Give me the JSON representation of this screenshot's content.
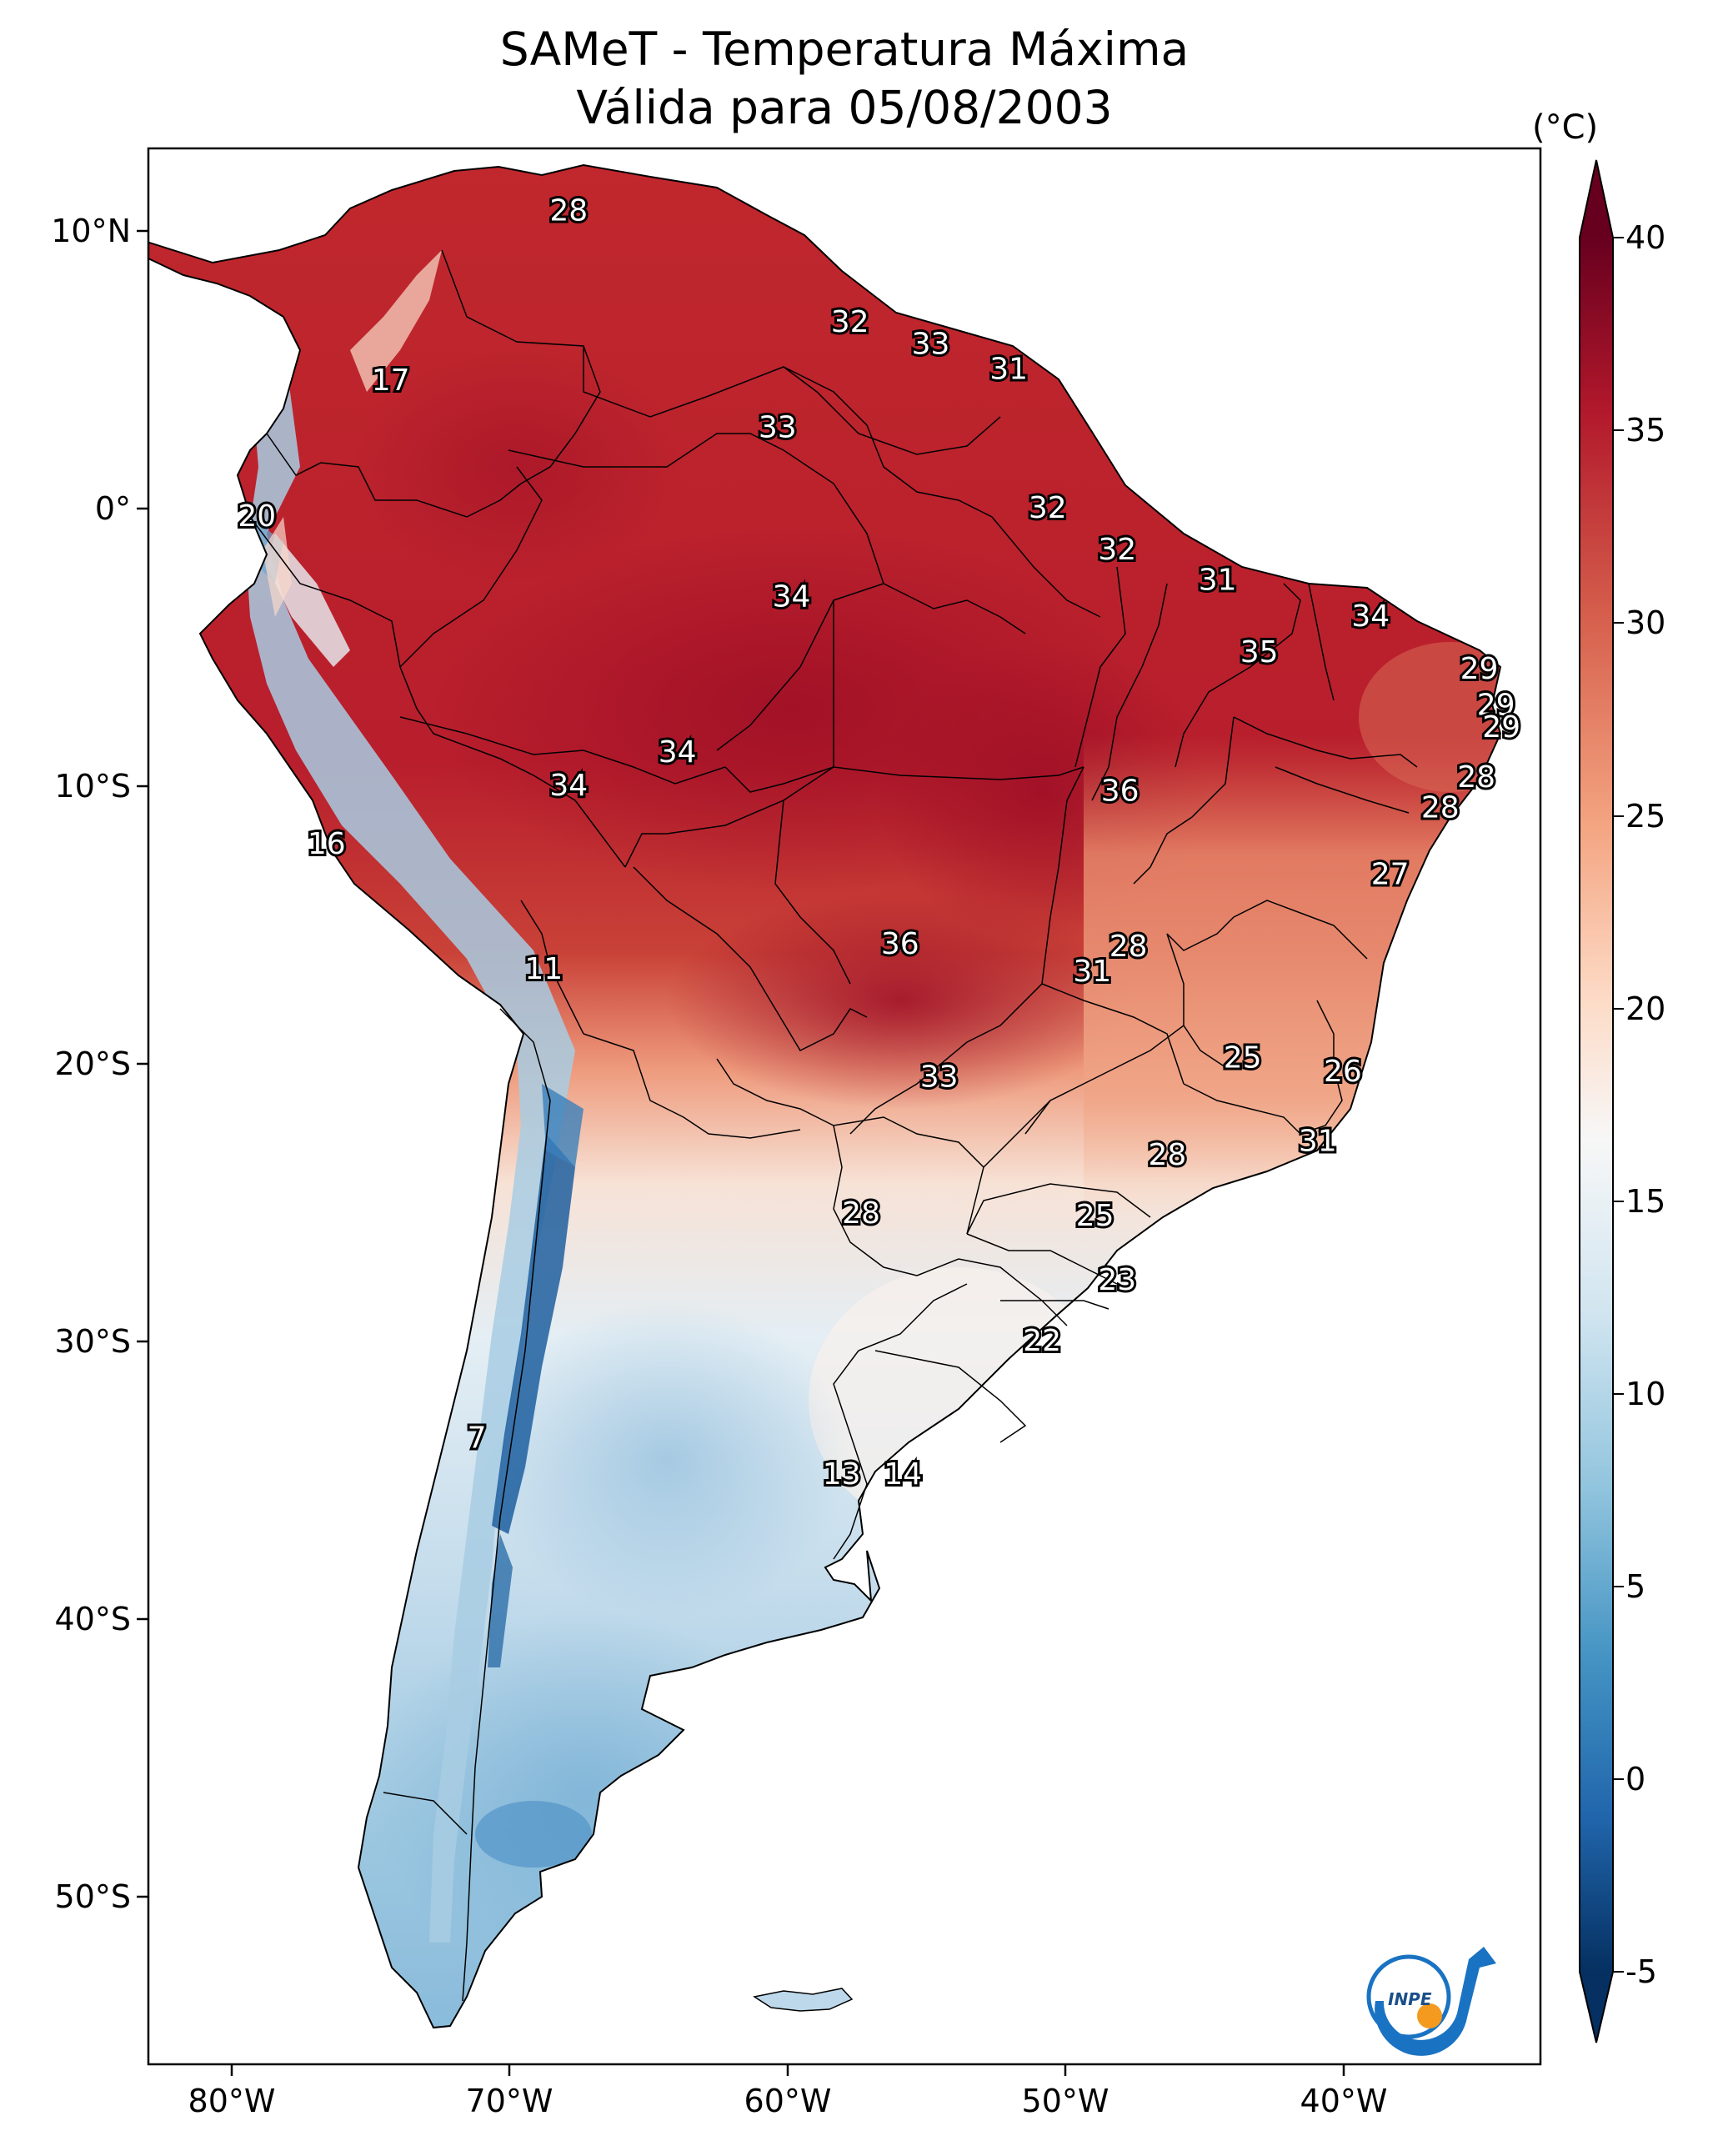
{
  "title_line1": "SAMeT - Temperatura Máxima",
  "title_line2": "Válida para 05/08/2003",
  "unit_label": "(°C)",
  "logo_text": "INPE",
  "lon_ticks": [
    "80°W",
    "70°W",
    "60°W",
    "50°W",
    "40°W"
  ],
  "lat_ticks": [
    "10°N",
    "0°",
    "10°S",
    "20°S",
    "30°S",
    "40°S",
    "50°S"
  ],
  "colorbar": {
    "ticks": [
      "40",
      "35",
      "30",
      "25",
      "20",
      "15",
      "10",
      "5",
      "0",
      "-5"
    ],
    "range": [
      -5,
      40
    ],
    "colors": [
      "#67001f",
      "#b2182b",
      "#d6604d",
      "#f4a582",
      "#fddbc7",
      "#f7f7f7",
      "#d1e5f0",
      "#92c5de",
      "#4393c3",
      "#2166ac",
      "#053061"
    ]
  },
  "map_extent": {
    "lon": [
      -83,
      -33
    ],
    "lat": [
      -56,
      13
    ]
  },
  "contour_labels": [
    {
      "text": "28",
      "lon": -67.9,
      "lat": 10.7
    },
    {
      "text": "32",
      "lon": -57.8,
      "lat": 6.7
    },
    {
      "text": "33",
      "lon": -54.9,
      "lat": 5.9
    },
    {
      "text": "31",
      "lon": -52.1,
      "lat": 5.0
    },
    {
      "text": "17",
      "lon": -74.3,
      "lat": 4.6
    },
    {
      "text": "33",
      "lon": -60.4,
      "lat": 2.9
    },
    {
      "text": "20",
      "lon": -79.1,
      "lat": -0.3
    },
    {
      "text": "32",
      "lon": -50.7,
      "lat": 0.0
    },
    {
      "text": "32",
      "lon": -48.2,
      "lat": -1.5
    },
    {
      "text": "31",
      "lon": -44.6,
      "lat": -2.6
    },
    {
      "text": "34",
      "lon": -59.9,
      "lat": -3.2
    },
    {
      "text": "34",
      "lon": -39.1,
      "lat": -3.9
    },
    {
      "text": "35",
      "lon": -43.1,
      "lat": -5.2
    },
    {
      "text": "29",
      "lon": -35.2,
      "lat": -5.8
    },
    {
      "text": "29",
      "lon": -34.6,
      "lat": -7.1
    },
    {
      "text": "29",
      "lon": -34.4,
      "lat": -7.9
    },
    {
      "text": "34",
      "lon": -64.0,
      "lat": -8.8
    },
    {
      "text": "34",
      "lon": -67.9,
      "lat": -10.0
    },
    {
      "text": "36",
      "lon": -48.1,
      "lat": -10.2
    },
    {
      "text": "28",
      "lon": -35.3,
      "lat": -9.7
    },
    {
      "text": "28",
      "lon": -36.6,
      "lat": -10.8
    },
    {
      "text": "16",
      "lon": -76.6,
      "lat": -12.1
    },
    {
      "text": "27",
      "lon": -38.4,
      "lat": -13.2
    },
    {
      "text": "36",
      "lon": -56.0,
      "lat": -15.7
    },
    {
      "text": "28",
      "lon": -47.8,
      "lat": -15.8
    },
    {
      "text": "31",
      "lon": -49.1,
      "lat": -16.7
    },
    {
      "text": "11",
      "lon": -68.8,
      "lat": -16.6
    },
    {
      "text": "25",
      "lon": -43.7,
      "lat": -19.8
    },
    {
      "text": "26",
      "lon": -40.1,
      "lat": -20.3
    },
    {
      "text": "33",
      "lon": -54.6,
      "lat": -20.5
    },
    {
      "text": "31",
      "lon": -41.0,
      "lat": -22.8
    },
    {
      "text": "28",
      "lon": -46.4,
      "lat": -23.3
    },
    {
      "text": "28",
      "lon": -57.4,
      "lat": -25.4
    },
    {
      "text": "25",
      "lon": -49.0,
      "lat": -25.5
    },
    {
      "text": "23",
      "lon": -48.2,
      "lat": -27.8
    },
    {
      "text": "22",
      "lon": -50.9,
      "lat": -30.0
    },
    {
      "text": "7",
      "lon": -71.2,
      "lat": -33.5
    },
    {
      "text": "13",
      "lon": -58.1,
      "lat": -34.8
    },
    {
      "text": "14",
      "lon": -55.9,
      "lat": -34.8
    }
  ]
}
